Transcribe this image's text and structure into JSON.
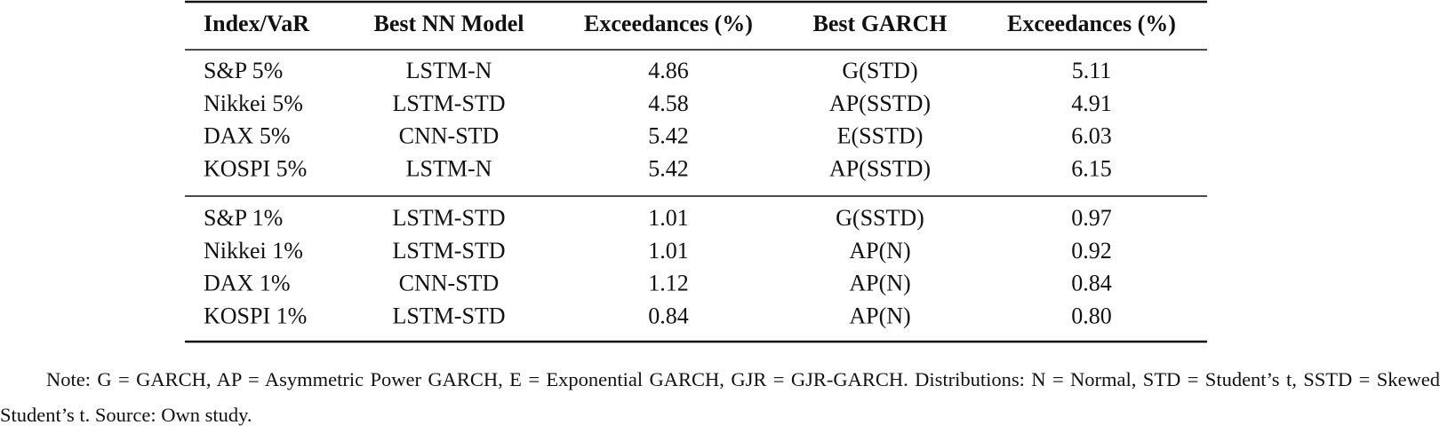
{
  "table": {
    "header": [
      "Index/VaR",
      "Best NN Model",
      "Exceedances (%)",
      "Best GARCH",
      "Exceedances (%)"
    ],
    "groups": [
      [
        [
          "S&P 5%",
          "LSTM-N",
          "4.86",
          "G(STD)",
          "5.11"
        ],
        [
          "Nikkei 5%",
          "LSTM-STD",
          "4.58",
          "AP(SSTD)",
          "4.91"
        ],
        [
          "DAX 5%",
          "CNN-STD",
          "5.42",
          "E(SSTD)",
          "6.03"
        ],
        [
          "KOSPI 5%",
          "LSTM-N",
          "5.42",
          "AP(SSTD)",
          "6.15"
        ]
      ],
      [
        [
          "S&P 1%",
          "LSTM-STD",
          "1.01",
          "G(SSTD)",
          "0.97"
        ],
        [
          "Nikkei 1%",
          "LSTM-STD",
          "1.01",
          "AP(N)",
          "0.92"
        ],
        [
          "DAX 1%",
          "CNN-STD",
          "1.12",
          "AP(N)",
          "0.84"
        ],
        [
          "KOSPI 1%",
          "LSTM-STD",
          "0.84",
          "AP(N)",
          "0.80"
        ]
      ]
    ]
  },
  "note": "Note: G = GARCH, AP = Asymmetric Power GARCH, E = Exponential GARCH, GJR = GJR-GARCH. Distributions: N = Normal, STD = Student’s t, SSTD = Skewed Student’s t. Source: Own study."
}
